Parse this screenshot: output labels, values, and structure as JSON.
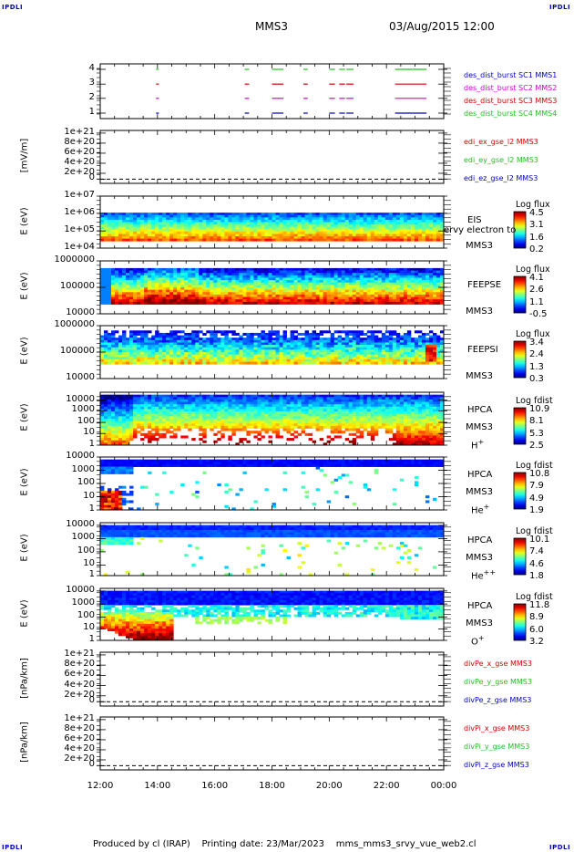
{
  "corner_label": "IPDLI",
  "header": {
    "spacecraft": "MMS3",
    "datetime": "03/Aug/2015 12:00"
  },
  "x_axis": {
    "ticks": [
      "12:00",
      "14:00",
      "16:00",
      "18:00",
      "20:00",
      "22:00",
      "00:00"
    ],
    "range_hours": [
      12,
      24
    ]
  },
  "footer": {
    "produced_by": "Produced by cl (IRAP)",
    "printing_date": "Printing date: 23/Mar/2023",
    "script": "mms_mms3_srvy_vue_web2.cl"
  },
  "colors": {
    "blue": "#0000c0",
    "magenta": "#d000d0",
    "red": "#d00000",
    "green": "#20c020"
  },
  "chart_data": [
    {
      "type": "line",
      "panel": "burst",
      "yticks": [
        "4",
        "3",
        "2",
        "1"
      ],
      "legend": [
        {
          "text": "des_dist_burst SC1 MMS1",
          "color": "#0000c0"
        },
        {
          "text": "des_dist_burst SC2 MMS2",
          "color": "#d000d0"
        },
        {
          "text": "des_dist_burst SC3 MMS3",
          "color": "#d00000"
        },
        {
          "text": "des_dist_burst SC4 MMS4",
          "color": "#20c020"
        }
      ],
      "intervals_hours": [
        [
          13.95,
          14.05
        ],
        [
          17.05,
          17.2
        ],
        [
          18.0,
          18.4
        ],
        [
          19.1,
          19.25
        ],
        [
          20.0,
          20.2
        ],
        [
          20.35,
          20.55
        ],
        [
          20.6,
          20.85
        ],
        [
          22.3,
          23.4
        ]
      ]
    },
    {
      "type": "line",
      "panel": "edi",
      "ylabel": "[mV/m]",
      "yticks": [
        "1e+21",
        "8e+20",
        "6e+20",
        "4e+20",
        "2e+20",
        "0"
      ],
      "legend": [
        {
          "text": "edi_ex_gse_l2 MMS3",
          "color": "#d00000"
        },
        {
          "text": "edi_ey_gse_l2 MMS3",
          "color": "#20c020"
        },
        {
          "text": "edi_ez_gse_l2 MMS3",
          "color": "#0000c0"
        }
      ]
    },
    {
      "type": "heatmap",
      "panel": "eis",
      "ylabel": "E (eV)",
      "yticks": [
        "1e+07",
        "1e+06",
        "1e+05",
        "1e+04"
      ],
      "instrument": [
        "EIS",
        "MMS3"
      ],
      "overlap_text": "ervy electron to",
      "colorbar": {
        "title": "Log flux",
        "values": [
          "4.5",
          "3.1",
          "1.6",
          "0.2"
        ]
      }
    },
    {
      "type": "heatmap",
      "panel": "feepse",
      "ylabel": "E (eV)",
      "yticks": [
        "1000000",
        "100000",
        "10000"
      ],
      "instrument": [
        "FEEPSE",
        "MMS3"
      ],
      "colorbar": {
        "title": "Log flux",
        "values": [
          "4.1",
          "2.6",
          "1.1",
          "-0.5"
        ]
      }
    },
    {
      "type": "heatmap",
      "panel": "feepsi",
      "ylabel": "E (eV)",
      "yticks": [
        "1000000",
        "100000",
        "10000"
      ],
      "instrument": [
        "FEEPSI",
        "MMS3"
      ],
      "colorbar": {
        "title": "Log flux",
        "values": [
          "3.4",
          "2.4",
          "1.3",
          "0.3"
        ]
      }
    },
    {
      "type": "heatmap",
      "panel": "hpca_h",
      "ylabel": "E (eV)",
      "yticks": [
        "10000",
        "1000",
        "100",
        "10",
        "1"
      ],
      "instrument": [
        "HPCA",
        "MMS3",
        "H",
        "+"
      ],
      "colorbar": {
        "title": "Log fdist",
        "values": [
          "10.9",
          "8.1",
          "5.3",
          "2.5"
        ]
      }
    },
    {
      "type": "heatmap",
      "panel": "hpca_he",
      "ylabel": "E (eV)",
      "yticks": [
        "10000",
        "1000",
        "100",
        "10",
        "1"
      ],
      "instrument": [
        "HPCA",
        "MMS3",
        "He",
        "+"
      ],
      "colorbar": {
        "title": "Log fdist",
        "values": [
          "10.8",
          "7.9",
          "4.9",
          "1.9"
        ]
      }
    },
    {
      "type": "heatmap",
      "panel": "hpca_hepp",
      "ylabel": "E (eV)",
      "yticks": [
        "10000",
        "1000",
        "100",
        "10",
        "1"
      ],
      "instrument": [
        "HPCA",
        "MMS3",
        "He",
        "++"
      ],
      "colorbar": {
        "title": "Log fdist",
        "values": [
          "10.1",
          "7.4",
          "4.6",
          "1.8"
        ]
      }
    },
    {
      "type": "heatmap",
      "panel": "hpca_o",
      "ylabel": "E (eV)",
      "yticks": [
        "10000",
        "1000",
        "100",
        "10",
        "1"
      ],
      "instrument": [
        "HPCA",
        "MMS3",
        "O",
        "+"
      ],
      "colorbar": {
        "title": "Log fdist",
        "values": [
          "11.8",
          "8.9",
          "6.0",
          "3.2"
        ]
      }
    },
    {
      "type": "line",
      "panel": "divpe",
      "ylabel": "[nPa/km]",
      "yticks": [
        "1e+21",
        "8e+20",
        "6e+20",
        "4e+20",
        "2e+20",
        "0"
      ],
      "legend": [
        {
          "text": "divPe_x_gse MMS3",
          "color": "#d00000"
        },
        {
          "text": "divPe_y_gse MMS3",
          "color": "#20c020"
        },
        {
          "text": "divPe_z_gse MMS3",
          "color": "#0000c0"
        }
      ]
    },
    {
      "type": "line",
      "panel": "divpi",
      "ylabel": "[nPa/km]",
      "yticks": [
        "1e+21",
        "8e+20",
        "6e+20",
        "4e+20",
        "2e+20",
        "0"
      ],
      "legend": [
        {
          "text": "divPi_x_gse MMS3",
          "color": "#d00000"
        },
        {
          "text": "divPi_y_gse MMS3",
          "color": "#20c020"
        },
        {
          "text": "divPi_z_gse MMS3",
          "color": "#0000c0"
        }
      ]
    }
  ]
}
